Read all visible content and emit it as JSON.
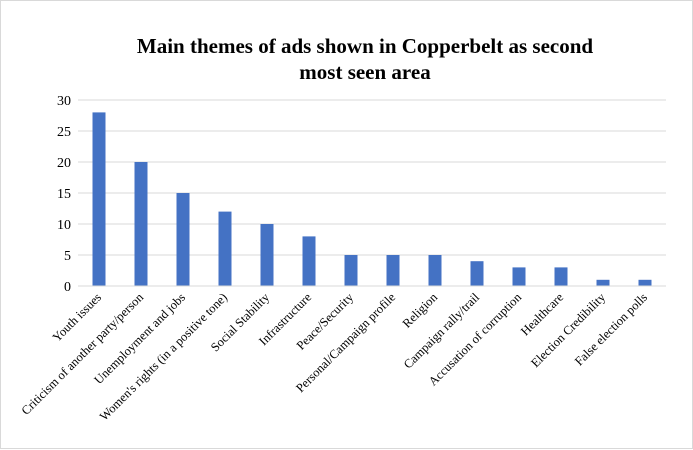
{
  "chart_data": {
    "type": "bar",
    "title_lines": [
      "Main themes of ads shown in Copperbelt as second",
      "most seen area"
    ],
    "xlabel": "",
    "ylabel": "",
    "ylim": [
      0,
      30
    ],
    "yticks": [
      0,
      5,
      10,
      15,
      20,
      25,
      30
    ],
    "grid": true,
    "legend": "none",
    "categories": [
      "Youth issues",
      "Criticism of another party/person",
      "Unemployment and jobs",
      "Women's rights (in a positive tone)",
      "Social Stability",
      "Infrastructure",
      "Peace/Security",
      "Personal/Campaign profile",
      "Religion",
      "Campaign rally/trail",
      "Accusation of corruption",
      "Healthcare",
      "Election Credibility",
      "False election polls"
    ],
    "values": [
      28,
      20,
      15,
      12,
      10,
      8,
      5,
      5,
      5,
      4,
      3,
      3,
      1,
      1
    ],
    "bar_color": "#4472c4",
    "grid_color": "#d9d9d9"
  }
}
